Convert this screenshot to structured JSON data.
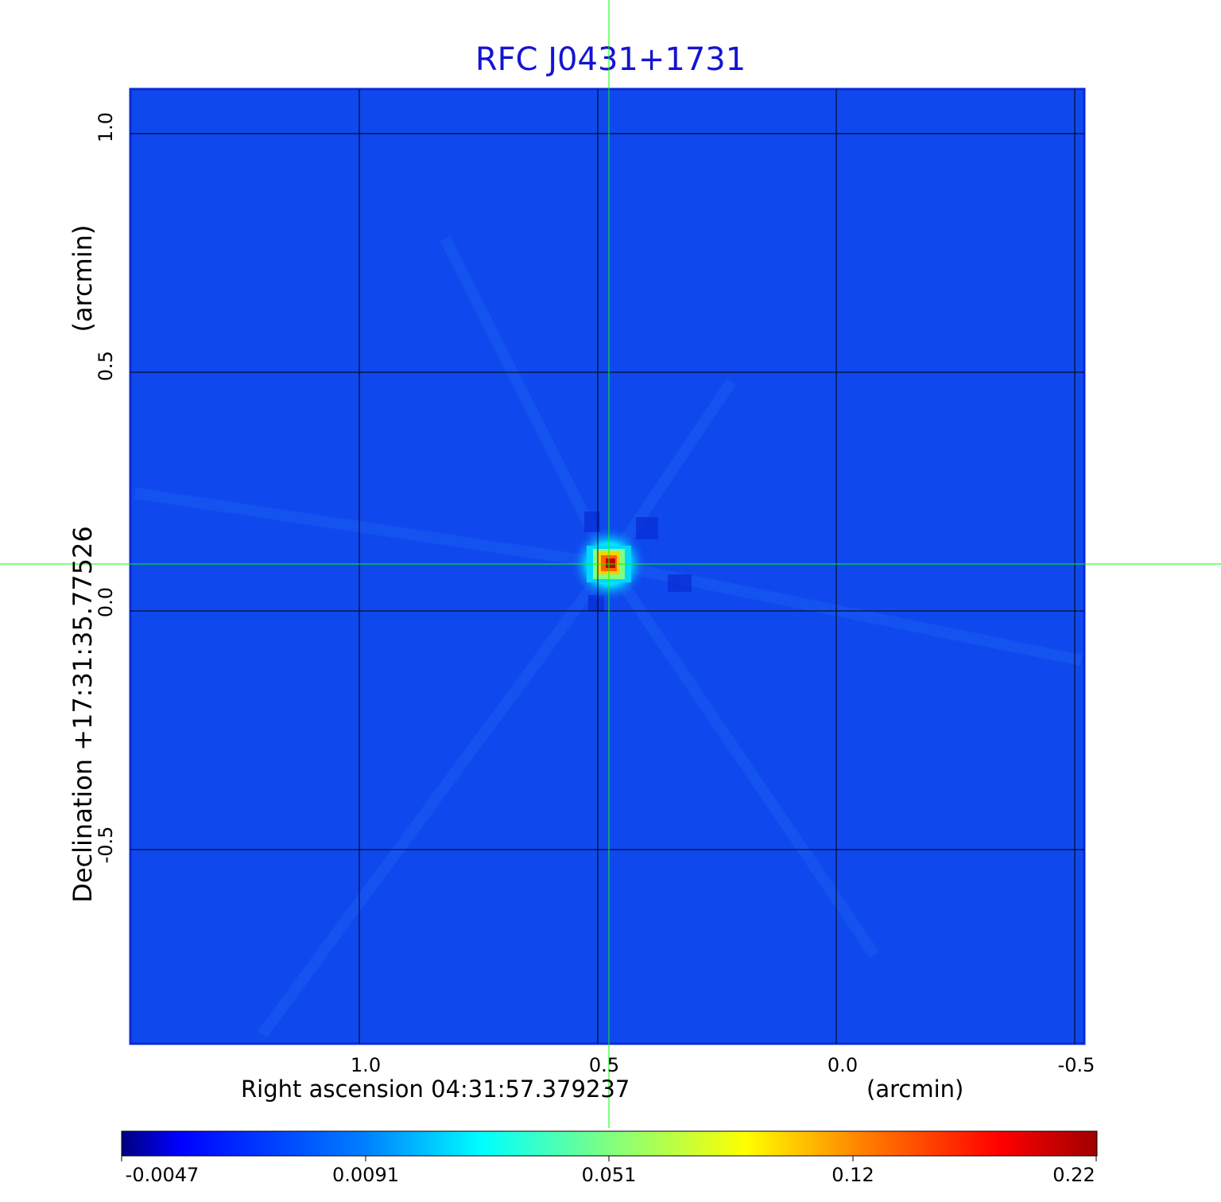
{
  "title": "RFC J0431+1731",
  "title_color": "#1414d2",
  "background_color": "#0f49ee",
  "x_axis": {
    "label": "Right ascension  04:31:57.379237",
    "unit": "(arcmin)",
    "ticks": [
      "1.0",
      "0.5",
      "0.0",
      "-0.5"
    ]
  },
  "y_axis": {
    "label": "Declination  +17:31:35.77526",
    "unit": "(arcmin)",
    "ticks": [
      "1.0",
      "0.5",
      "0.0",
      "-0.5"
    ]
  },
  "colorbar": {
    "ticks": [
      "-0.0047",
      "0.0091",
      "0.051",
      "0.12",
      "0.22"
    ],
    "colors": [
      "#000080",
      "#0000ff",
      "#0080ff",
      "#00ffff",
      "#80ff80",
      "#ffff00",
      "#ff8000",
      "#ff0000",
      "#800000"
    ]
  },
  "crosshair_color": "#00ff00",
  "grid_color": "#000000"
}
